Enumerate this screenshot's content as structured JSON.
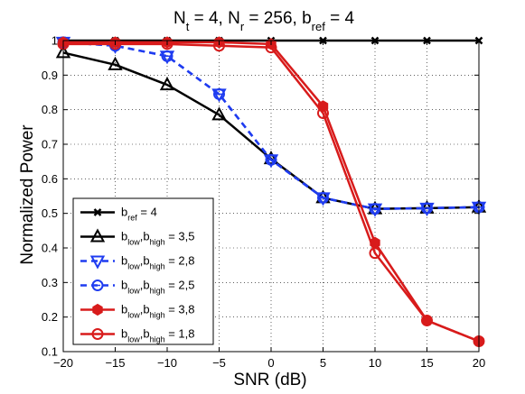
{
  "chart_data": {
    "type": "line",
    "title": {
      "parts": [
        {
          "t": "N",
          "sub": "t"
        },
        {
          "t": " = 4, N",
          "sub": "r"
        },
        {
          "t": " = 256, b",
          "sub": "ref"
        },
        {
          "t": " = 4",
          "sub": ""
        }
      ]
    },
    "xlabel": "SNR (dB)",
    "ylabel": "Normalized Power",
    "xlim": [
      -20,
      20
    ],
    "ylim": [
      0.1,
      1.0
    ],
    "xticks": [
      -20,
      -15,
      -10,
      -5,
      0,
      5,
      10,
      15,
      20
    ],
    "xtick_labels": [
      "−20",
      "−15",
      "−10",
      "−5",
      "0",
      "5",
      "10",
      "15",
      "20"
    ],
    "yticks": [
      0.1,
      0.2,
      0.3,
      0.4,
      0.5,
      0.6,
      0.7,
      0.8,
      0.9,
      1.0
    ],
    "ytick_labels": [
      "0.1",
      "0.2",
      "0.3",
      "0.4",
      "0.5",
      "0.6",
      "0.7",
      "0.8",
      "0.9",
      "1"
    ],
    "grid": true,
    "legend_position": "lower-left",
    "x": [
      -20,
      -15,
      -10,
      -5,
      0,
      5,
      10,
      15,
      20
    ],
    "series": [
      {
        "label": [
          {
            "t": "b",
            "sub": "ref"
          },
          {
            "t": " = 4",
            "sub": ""
          }
        ],
        "color": "#000000",
        "dash": "solid",
        "marker": "x",
        "values": [
          1.0,
          1.0,
          1.0,
          1.0,
          1.0,
          1.0,
          1.0,
          1.0,
          1.0
        ]
      },
      {
        "label": [
          {
            "t": "b",
            "sub": "low"
          },
          {
            "t": ",b",
            "sub": "high"
          },
          {
            "t": " = 3,5",
            "sub": ""
          }
        ],
        "color": "#000000",
        "dash": "solid",
        "marker": "triangle-up",
        "values": [
          0.965,
          0.93,
          0.872,
          0.785,
          0.658,
          0.545,
          0.513,
          0.515,
          0.518
        ]
      },
      {
        "label": [
          {
            "t": "b",
            "sub": "low"
          },
          {
            "t": ",b",
            "sub": "high"
          },
          {
            "t": " = 2,8",
            "sub": ""
          }
        ],
        "color": "#1f3cf0",
        "dash": "dashed",
        "marker": "triangle-down",
        "values": [
          0.995,
          0.985,
          0.955,
          0.845,
          0.655,
          0.545,
          0.513,
          0.515,
          0.518
        ]
      },
      {
        "label": [
          {
            "t": "b",
            "sub": "low"
          },
          {
            "t": ",b",
            "sub": "high"
          },
          {
            "t": " = 2,5",
            "sub": ""
          }
        ],
        "color": "#1f3cf0",
        "dash": "dashed",
        "marker": "circle-dash",
        "values": [
          0.995,
          0.985,
          0.955,
          0.845,
          0.655,
          0.545,
          0.513,
          0.515,
          0.518
        ]
      },
      {
        "label": [
          {
            "t": "b",
            "sub": "low"
          },
          {
            "t": ",b",
            "sub": "high"
          },
          {
            "t": " = 3,8",
            "sub": ""
          }
        ],
        "color": "#d81b1b",
        "dash": "solid",
        "marker": "hexagon",
        "values": [
          0.995,
          0.995,
          0.995,
          0.995,
          0.99,
          0.81,
          0.415,
          0.19,
          0.13
        ]
      },
      {
        "label": [
          {
            "t": "b",
            "sub": "low"
          },
          {
            "t": ",b",
            "sub": "high"
          },
          {
            "t": " = 1,8",
            "sub": ""
          }
        ],
        "color": "#d81b1b",
        "dash": "solid",
        "marker": "circle",
        "values": [
          0.99,
          0.99,
          0.99,
          0.985,
          0.98,
          0.79,
          0.385,
          0.19,
          0.13
        ]
      }
    ]
  }
}
